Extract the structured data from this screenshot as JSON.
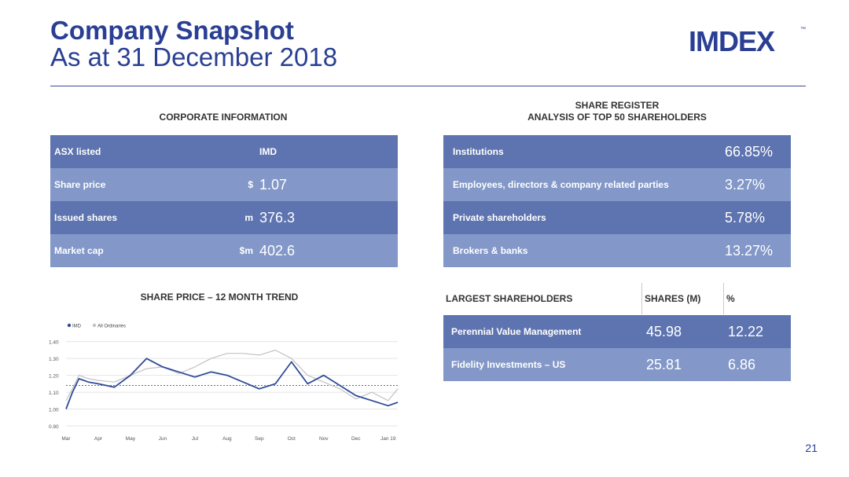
{
  "header": {
    "title_line1": "Company Snapshot",
    "title_line2": "As at 31 December 2018",
    "logo_text": "IMDEX",
    "logo_tm": "™"
  },
  "corporate": {
    "heading": "CORPORATE INFORMATION",
    "rows": [
      {
        "label": "ASX listed",
        "unit": "",
        "value": "IMD"
      },
      {
        "label": "Share price",
        "unit": "$",
        "value": "1.07"
      },
      {
        "label": "Issued shares",
        "unit": "m",
        "value": "376.3"
      },
      {
        "label": "Market cap",
        "unit": "$m",
        "value": "402.6"
      }
    ]
  },
  "register": {
    "heading_line1": "SHARE REGISTER",
    "heading_line2": "ANALYSIS OF TOP 50 SHAREHOLDERS",
    "rows": [
      {
        "label": "Institutions",
        "value": "66.85%"
      },
      {
        "label": "Employees, directors & company related parties",
        "value": "3.27%"
      },
      {
        "label": "Private shareholders",
        "value": "5.78%"
      },
      {
        "label": "Brokers & banks",
        "value": "13.27%"
      }
    ]
  },
  "largest": {
    "col_name": "LARGEST SHAREHOLDERS",
    "col_shares": "SHARES (M)",
    "col_pct": "%",
    "rows": [
      {
        "name": "Perennial Value Management",
        "shares": "45.98",
        "pct": "12.22"
      },
      {
        "name": "Fidelity Investments – US",
        "shares": "25.81",
        "pct": "6.86"
      }
    ]
  },
  "trend": {
    "heading": "SHARE PRICE – 12 MONTH TREND"
  },
  "colors": {
    "brand": "#2a3f93",
    "row_dark": "#5e74b0",
    "row_light": "#8398c8",
    "imd_line": "#2e4b98",
    "index_line": "#c2c2c2",
    "reference_line": "#4a6bbf"
  },
  "chart_data": {
    "type": "line",
    "title": "",
    "xlabel": "",
    "ylabel": "",
    "legend": [
      "IMD",
      "All Ordinaries"
    ],
    "legend_position": "top-left",
    "grid": true,
    "x_ticks": [
      "Mar",
      "Apr",
      "May",
      "Jun",
      "Jul",
      "Aug",
      "Sep",
      "Oct",
      "Nov",
      "Dec",
      "Jan 19"
    ],
    "y_ticks": [
      0.9,
      1.0,
      1.1,
      1.2,
      1.3,
      1.4
    ],
    "y_tick_labels": [
      "0.90",
      "1.00",
      "1.10",
      "1.20",
      "1.30",
      "1.40"
    ],
    "ylim": [
      0.9,
      1.45
    ],
    "reference_y": 1.14,
    "series": [
      {
        "name": "IMD",
        "x": [
          0,
          0.2,
          0.4,
          0.7,
          1.0,
          1.5,
          2.0,
          2.5,
          3.0,
          3.5,
          4.0,
          4.5,
          5.0,
          5.5,
          6.0,
          6.5,
          7.0,
          7.5,
          8.0,
          8.5,
          9.0,
          9.5,
          10.0,
          10.3
        ],
        "y": [
          1.0,
          1.1,
          1.18,
          1.16,
          1.15,
          1.13,
          1.2,
          1.3,
          1.25,
          1.22,
          1.19,
          1.22,
          1.2,
          1.16,
          1.12,
          1.15,
          1.28,
          1.15,
          1.2,
          1.14,
          1.08,
          1.05,
          1.02,
          1.04
        ]
      },
      {
        "name": "All Ordinaries",
        "x": [
          0,
          0.2,
          0.4,
          0.7,
          1.0,
          1.5,
          2.0,
          2.5,
          3.0,
          3.5,
          4.0,
          4.5,
          5.0,
          5.5,
          6.0,
          6.5,
          7.0,
          7.5,
          8.0,
          8.5,
          9.0,
          9.5,
          10.0,
          10.3
        ],
        "y": [
          1.05,
          1.12,
          1.2,
          1.18,
          1.17,
          1.16,
          1.2,
          1.24,
          1.25,
          1.21,
          1.25,
          1.3,
          1.33,
          1.33,
          1.32,
          1.35,
          1.3,
          1.2,
          1.16,
          1.12,
          1.06,
          1.1,
          1.05,
          1.12
        ]
      }
    ]
  }
}
